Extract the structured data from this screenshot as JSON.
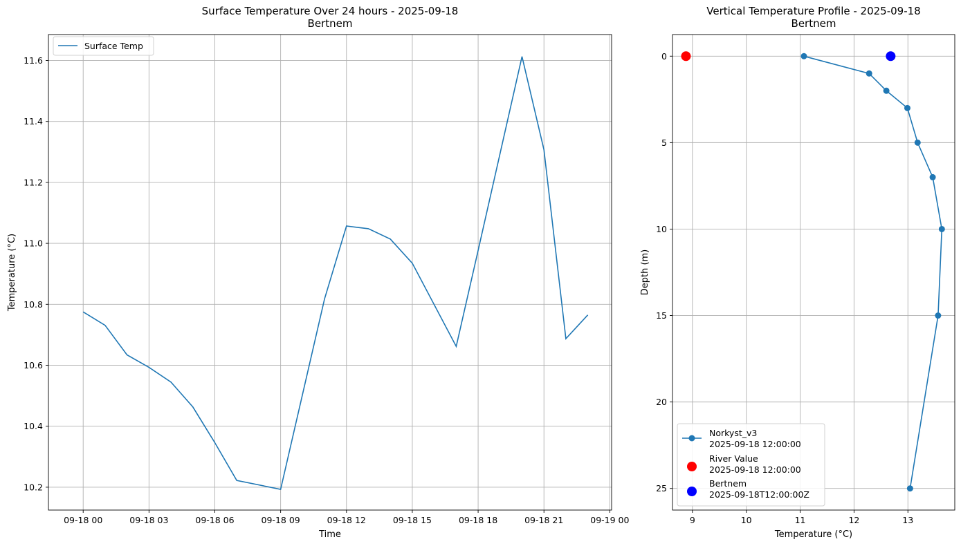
{
  "colors": {
    "series": "#1f77b4",
    "river": "#ff0000",
    "station": "#0000ff",
    "grid": "#b0b0b0"
  },
  "chart_data": [
    {
      "type": "line",
      "title": "Surface Temperature Over 24 hours - 2025-09-18",
      "subtitle": "Bertnem",
      "xlabel": "Time",
      "ylabel": "Temperature (°C)",
      "xlim": [
        "2025-09-17 22:25",
        "2025-09-19 00:05"
      ],
      "ylim": [
        10.125,
        11.685
      ],
      "grid": true,
      "legend": "top-left",
      "x_ticks": [
        {
          "x": "2025-09-18 00:00",
          "label": "09-18 00"
        },
        {
          "x": "2025-09-18 03:00",
          "label": "09-18 03"
        },
        {
          "x": "2025-09-18 06:00",
          "label": "09-18 06"
        },
        {
          "x": "2025-09-18 09:00",
          "label": "09-18 09"
        },
        {
          "x": "2025-09-18 12:00",
          "label": "09-18 12"
        },
        {
          "x": "2025-09-18 15:00",
          "label": "09-18 15"
        },
        {
          "x": "2025-09-18 18:00",
          "label": "09-18 18"
        },
        {
          "x": "2025-09-18 21:00",
          "label": "09-18 21"
        },
        {
          "x": "2025-09-19 00:00",
          "label": "09-19 00"
        }
      ],
      "y_ticks": [
        "10.2",
        "10.4",
        "10.6",
        "10.8",
        "11.0",
        "11.2",
        "11.4",
        "11.6"
      ],
      "series": [
        {
          "name": "Surface Temp",
          "x": [
            "2025-09-18 00:00",
            "2025-09-18 01:00",
            "2025-09-18 02:00",
            "2025-09-18 03:00",
            "2025-09-18 04:00",
            "2025-09-18 05:00",
            "2025-09-18 06:00",
            "2025-09-18 07:00",
            "2025-09-18 09:00",
            "2025-09-18 11:00",
            "2025-09-18 12:00",
            "2025-09-18 13:00",
            "2025-09-18 14:00",
            "2025-09-18 15:00",
            "2025-09-18 17:00",
            "2025-09-18 18:00",
            "2025-09-18 20:00",
            "2025-09-18 21:00",
            "2025-09-18 22:00",
            "2025-09-18 23:00"
          ],
          "y": [
            10.775,
            10.731,
            10.634,
            10.593,
            10.545,
            10.463,
            10.346,
            10.222,
            10.193,
            10.818,
            11.057,
            11.048,
            11.014,
            10.935,
            10.662,
            10.977,
            11.613,
            11.307,
            10.687,
            10.765
          ]
        }
      ]
    },
    {
      "type": "line",
      "title": "Vertical Temperature Profile - 2025-09-18",
      "subtitle": "Bertnem",
      "xlabel": "Temperature (°C)",
      "ylabel": "Depth (m)",
      "xlim": [
        8.63,
        13.87
      ],
      "ylim": [
        26.25,
        -1.25
      ],
      "y_inverted": true,
      "grid": true,
      "legend": "bottom-left",
      "x_ticks": [
        "9",
        "10",
        "11",
        "12",
        "13"
      ],
      "y_ticks": [
        "0",
        "5",
        "10",
        "15",
        "20",
        "25"
      ],
      "series": [
        {
          "name": "Norkyst_v3\n2025-09-18 12:00:00",
          "marker": "circle",
          "temperature": [
            11.07,
            12.28,
            12.6,
            12.99,
            13.18,
            13.46,
            13.63,
            13.56,
            13.04
          ],
          "depth": [
            0,
            1,
            2,
            3,
            5,
            7,
            10,
            15,
            25
          ]
        },
        {
          "name": "River Value\n2025-09-18 12:00:00",
          "marker": "circle",
          "temperature": [
            8.88
          ],
          "depth": [
            0
          ]
        },
        {
          "name": "Bertnem\n2025-09-18T12:00:00Z",
          "marker": "circle",
          "temperature": [
            12.68
          ],
          "depth": [
            0
          ]
        }
      ]
    }
  ]
}
